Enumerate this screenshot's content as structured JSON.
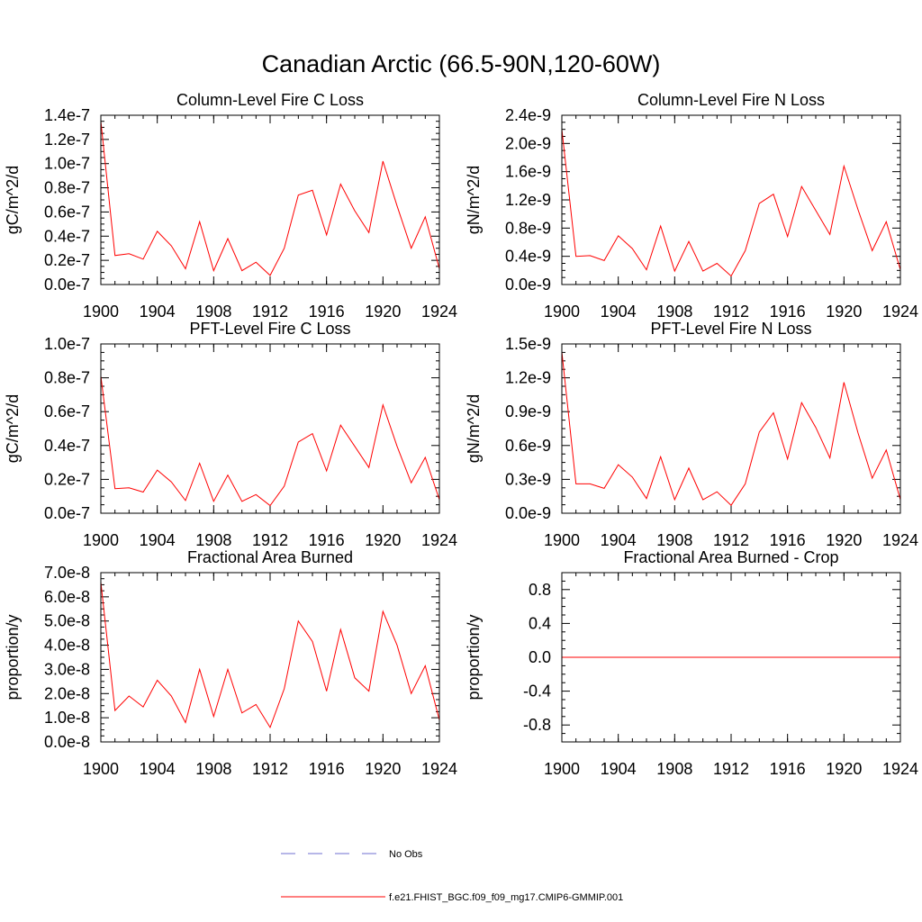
{
  "figure": {
    "title": "Canadian Arctic (66.5-90N,120-60W)"
  },
  "legend": {
    "items": [
      {
        "label": "No Obs",
        "color": "#6f6fd0",
        "dash": true
      },
      {
        "label": "f.e21.FHIST_BGC.f09_f09_mg17.CMIP6-GMMIP.001",
        "color": "#ff0000",
        "dash": false
      }
    ]
  },
  "chart_data": [
    {
      "type": "line",
      "title": "Column-Level Fire C Loss",
      "ylabel": "gC/m^2/d",
      "xlim": [
        1900,
        1924
      ],
      "ylim": [
        0,
        1.4e-07
      ],
      "xticks": [
        1900,
        1904,
        1908,
        1912,
        1916,
        1920,
        1924
      ],
      "xtick_labels": [
        "1900",
        "1904",
        "1908",
        "1912",
        "1916",
        "1920",
        "1924"
      ],
      "yticks": [
        0,
        2e-08,
        4e-08,
        6e-08,
        8e-08,
        1e-07,
        1.2e-07,
        1.4e-07
      ],
      "ytick_labels": [
        "0.0e-7",
        "0.2e-7",
        "0.4e-7",
        "0.6e-7",
        "0.8e-7",
        "1.0e-7",
        "1.2e-7",
        "1.4e-7"
      ],
      "x": [
        1900,
        1901,
        1902,
        1903,
        1904,
        1905,
        1906,
        1907,
        1908,
        1909,
        1910,
        1911,
        1912,
        1913,
        1914,
        1915,
        1916,
        1917,
        1918,
        1919,
        1920,
        1921,
        1922,
        1923,
        1924
      ],
      "series": [
        {
          "color": "#ff0000",
          "values": [
            1.35e-07,
            2.4e-08,
            2.55e-08,
            2.1e-08,
            4.4e-08,
            3.2e-08,
            1.3e-08,
            5.2e-08,
            1.15e-08,
            3.8e-08,
            1.15e-08,
            1.85e-08,
            7.5e-09,
            3e-08,
            7.4e-08,
            7.8e-08,
            4.1e-08,
            8.3e-08,
            6.1e-08,
            4.3e-08,
            1.02e-07,
            6.5e-08,
            3e-08,
            5.6e-08,
            1.3e-08
          ]
        }
      ]
    },
    {
      "type": "line",
      "title": "Column-Level Fire N Loss",
      "ylabel": "gN/m^2/d",
      "xlim": [
        1900,
        1924
      ],
      "ylim": [
        0,
        2.4e-09
      ],
      "xticks": [
        1900,
        1904,
        1908,
        1912,
        1916,
        1920,
        1924
      ],
      "xtick_labels": [
        "1900",
        "1904",
        "1908",
        "1912",
        "1916",
        "1920",
        "1924"
      ],
      "yticks": [
        0,
        4e-10,
        8e-10,
        1.2e-09,
        1.6e-09,
        2e-09,
        2.4e-09
      ],
      "ytick_labels": [
        "0.0e-9",
        "0.4e-9",
        "0.8e-9",
        "1.2e-9",
        "1.6e-9",
        "2.0e-9",
        "2.4e-9"
      ],
      "x": [
        1900,
        1901,
        1902,
        1903,
        1904,
        1905,
        1906,
        1907,
        1908,
        1909,
        1910,
        1911,
        1912,
        1913,
        1914,
        1915,
        1916,
        1917,
        1918,
        1919,
        1920,
        1921,
        1922,
        1923,
        1924
      ],
      "series": [
        {
          "color": "#ff0000",
          "values": [
            2.2e-09,
            4e-10,
            4.1e-10,
            3.4e-10,
            6.9e-10,
            5.1e-10,
            2.1e-10,
            8.3e-10,
            1.9e-10,
            6.1e-10,
            1.9e-10,
            3e-10,
            1.2e-10,
            4.8e-10,
            1.15e-09,
            1.28e-09,
            6.8e-10,
            1.39e-09,
            1.05e-09,
            7.1e-10,
            1.68e-09,
            1.06e-09,
            4.8e-10,
            8.9e-10,
            2.1e-10
          ]
        }
      ]
    },
    {
      "type": "line",
      "title": "PFT-Level Fire C Loss",
      "ylabel": "gC/m^2/d",
      "xlim": [
        1900,
        1924
      ],
      "ylim": [
        0,
        1e-07
      ],
      "xticks": [
        1900,
        1904,
        1908,
        1912,
        1916,
        1920,
        1924
      ],
      "xtick_labels": [
        "1900",
        "1904",
        "1908",
        "1912",
        "1916",
        "1920",
        "1924"
      ],
      "yticks": [
        0,
        2e-08,
        4e-08,
        6e-08,
        8e-08,
        1e-07
      ],
      "ytick_labels": [
        "0.0e-7",
        "0.2e-7",
        "0.4e-7",
        "0.6e-7",
        "0.8e-7",
        "1.0e-7"
      ],
      "x": [
        1900,
        1901,
        1902,
        1903,
        1904,
        1905,
        1906,
        1907,
        1908,
        1909,
        1910,
        1911,
        1912,
        1913,
        1914,
        1915,
        1916,
        1917,
        1918,
        1919,
        1920,
        1921,
        1922,
        1923,
        1924
      ],
      "series": [
        {
          "color": "#ff0000",
          "values": [
            8.1e-08,
            1.45e-08,
            1.5e-08,
            1.25e-08,
            2.55e-08,
            1.85e-08,
            7.5e-09,
            2.95e-08,
            7e-09,
            2.25e-08,
            7e-09,
            1.1e-08,
            4.5e-09,
            1.6e-08,
            4.2e-08,
            4.7e-08,
            2.5e-08,
            5.2e-08,
            3.95e-08,
            2.7e-08,
            6.4e-08,
            3.95e-08,
            1.8e-08,
            3.3e-08,
            8e-09
          ]
        }
      ]
    },
    {
      "type": "line",
      "title": "PFT-Level Fire N Loss",
      "ylabel": "gN/m^2/d",
      "xlim": [
        1900,
        1924
      ],
      "ylim": [
        0,
        1.5e-09
      ],
      "xticks": [
        1900,
        1904,
        1908,
        1912,
        1916,
        1920,
        1924
      ],
      "xtick_labels": [
        "1900",
        "1904",
        "1908",
        "1912",
        "1916",
        "1920",
        "1924"
      ],
      "yticks": [
        0,
        3e-10,
        6e-10,
        9e-10,
        1.2e-09,
        1.5e-09
      ],
      "ytick_labels": [
        "0.0e-9",
        "0.3e-9",
        "0.6e-9",
        "0.9e-9",
        "1.2e-9",
        "1.5e-9"
      ],
      "x": [
        1900,
        1901,
        1902,
        1903,
        1904,
        1905,
        1906,
        1907,
        1908,
        1909,
        1910,
        1911,
        1912,
        1913,
        1914,
        1915,
        1916,
        1917,
        1918,
        1919,
        1920,
        1921,
        1922,
        1923,
        1924
      ],
      "series": [
        {
          "color": "#ff0000",
          "values": [
            1.43e-09,
            2.6e-10,
            2.6e-10,
            2.2e-10,
            4.3e-10,
            3.2e-10,
            1.3e-10,
            5e-10,
            1.2e-10,
            4e-10,
            1.2e-10,
            1.9e-10,
            7e-11,
            2.6e-10,
            7.2e-10,
            8.9e-10,
            4.8e-10,
            9.8e-10,
            7.6e-10,
            4.9e-10,
            1.16e-09,
            7.1e-10,
            3.1e-10,
            5.6e-10,
            1.2e-10
          ]
        }
      ]
    },
    {
      "type": "line",
      "title": "Fractional Area Burned",
      "ylabel": "proportion/y",
      "xlim": [
        1900,
        1924
      ],
      "ylim": [
        0,
        7e-08
      ],
      "xticks": [
        1900,
        1904,
        1908,
        1912,
        1916,
        1920,
        1924
      ],
      "xtick_labels": [
        "1900",
        "1904",
        "1908",
        "1912",
        "1916",
        "1920",
        "1924"
      ],
      "yticks": [
        0,
        1e-08,
        2e-08,
        3e-08,
        4e-08,
        5e-08,
        6e-08,
        7e-08
      ],
      "ytick_labels": [
        "0.0e-8",
        "1.0e-8",
        "2.0e-8",
        "3.0e-8",
        "4.0e-8",
        "5.0e-8",
        "6.0e-8",
        "7.0e-8"
      ],
      "x": [
        1900,
        1901,
        1902,
        1903,
        1904,
        1905,
        1906,
        1907,
        1908,
        1909,
        1910,
        1911,
        1912,
        1913,
        1914,
        1915,
        1916,
        1917,
        1918,
        1919,
        1920,
        1921,
        1922,
        1923,
        1924
      ],
      "series": [
        {
          "color": "#ff0000",
          "values": [
            6.6e-08,
            1.3e-08,
            1.9e-08,
            1.45e-08,
            2.55e-08,
            1.9e-08,
            8e-09,
            3e-08,
            1.05e-08,
            3e-08,
            1.2e-08,
            1.55e-08,
            6e-09,
            2.2e-08,
            5e-08,
            4.15e-08,
            2.1e-08,
            4.65e-08,
            2.65e-08,
            2.1e-08,
            5.4e-08,
            4e-08,
            2e-08,
            3.15e-08,
            9e-09
          ]
        }
      ]
    },
    {
      "type": "line",
      "title": "Fractional Area Burned - Crop",
      "ylabel": "proportion/y",
      "xlim": [
        1900,
        1924
      ],
      "ylim": [
        -1,
        1
      ],
      "xticks": [
        1900,
        1904,
        1908,
        1912,
        1916,
        1920,
        1924
      ],
      "xtick_labels": [
        "1900",
        "1904",
        "1908",
        "1912",
        "1916",
        "1920",
        "1924"
      ],
      "yticks": [
        -0.8,
        -0.4,
        0,
        0.4,
        0.8
      ],
      "ytick_labels": [
        "-0.8",
        "-0.4",
        "0.0",
        "0.4",
        "0.8"
      ],
      "x": [
        1900,
        1901,
        1902,
        1903,
        1904,
        1905,
        1906,
        1907,
        1908,
        1909,
        1910,
        1911,
        1912,
        1913,
        1914,
        1915,
        1916,
        1917,
        1918,
        1919,
        1920,
        1921,
        1922,
        1923,
        1924
      ],
      "series": [
        {
          "color": "#ff0000",
          "values": [
            0,
            0,
            0,
            0,
            0,
            0,
            0,
            0,
            0,
            0,
            0,
            0,
            0,
            0,
            0,
            0,
            0,
            0,
            0,
            0,
            0,
            0,
            0,
            0,
            0
          ]
        }
      ]
    }
  ]
}
